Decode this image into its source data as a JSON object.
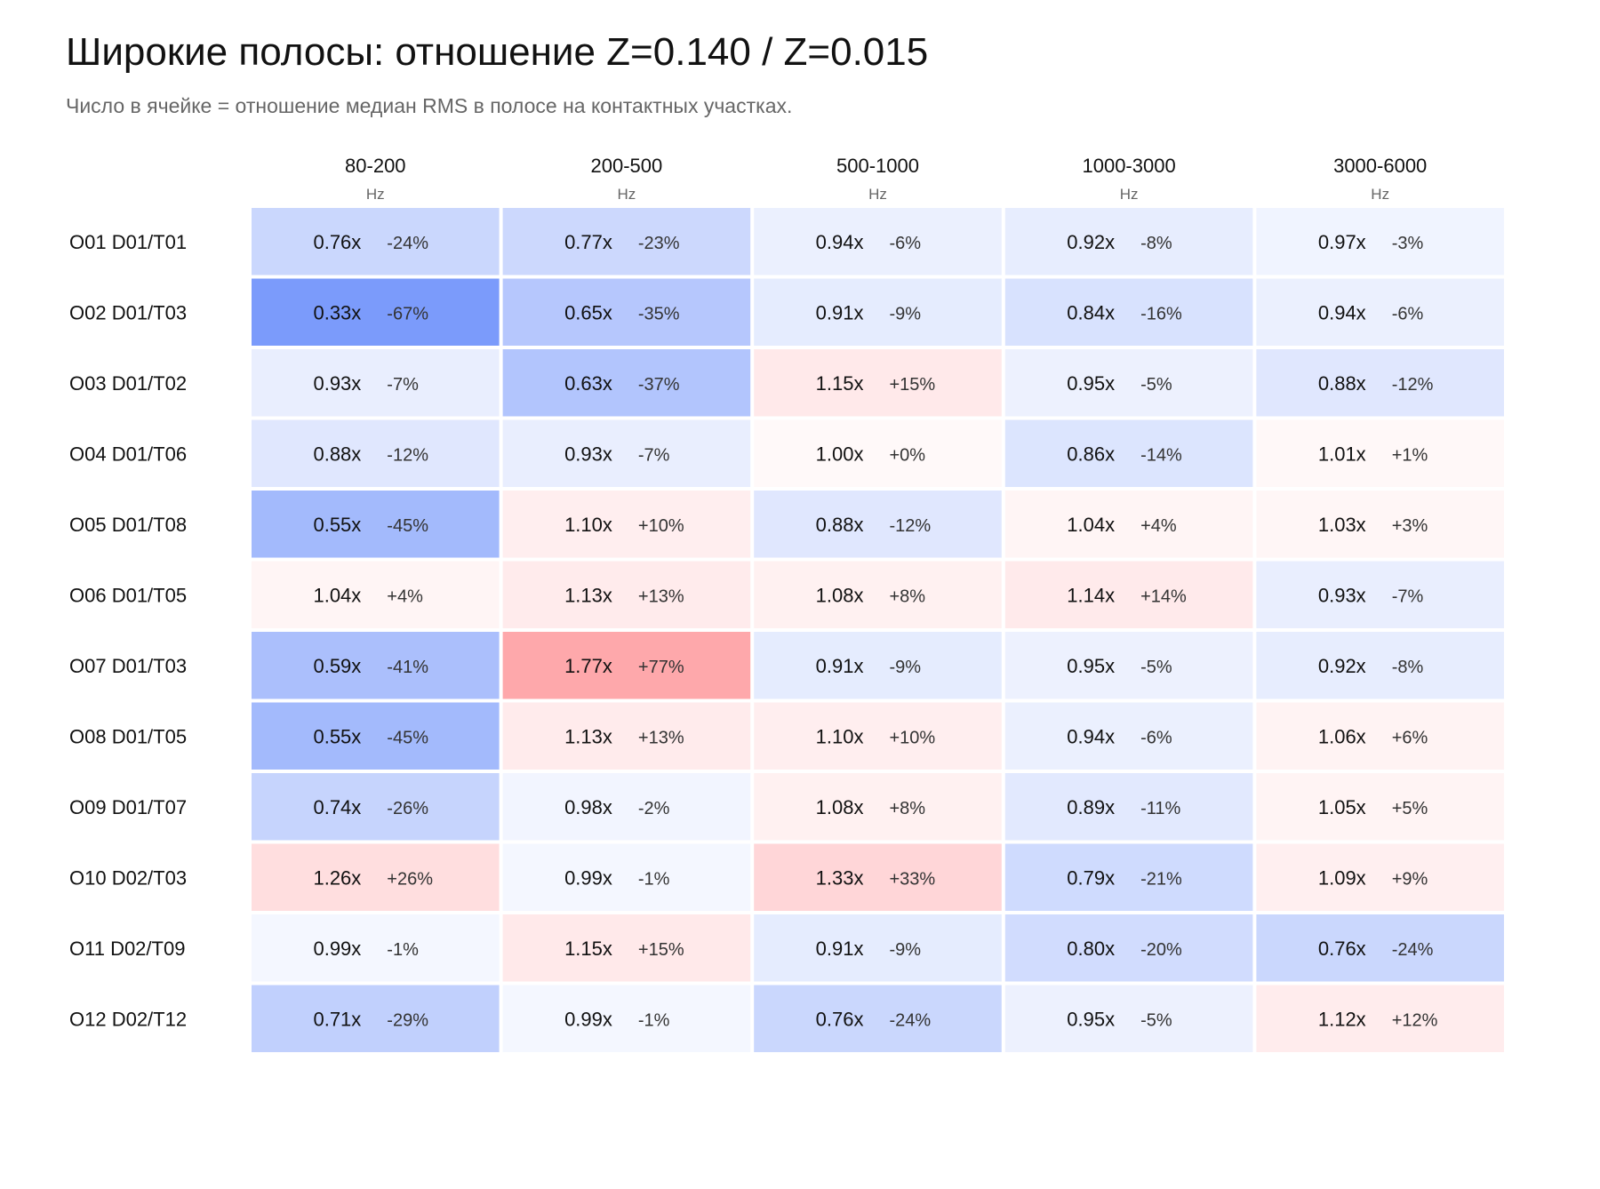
{
  "title": "Широкие полосы: отношение Z=0.140 / Z=0.015",
  "subtitle": "Число в ячейке = отношение медиан RMS в полосе на контактных участках.",
  "colors": {
    "decrease": "#7b9bfb",
    "increase": "#fea8ab",
    "neutral": "#ffffff"
  },
  "chart_data": {
    "type": "heatmap",
    "title": "Широкие полосы: отношение Z=0.140 / Z=0.015",
    "subtitle": "Число в ячейке = отношение медиан RMS в полосе на контактных участках.",
    "columns": [
      "80-200",
      "200-500",
      "500-1000",
      "1000-3000",
      "3000-6000"
    ],
    "column_unit": "Hz",
    "rows": [
      "O01 D01/T01",
      "O02 D01/T03",
      "O03 D01/T02",
      "O04 D01/T06",
      "O05 D01/T08",
      "O06 D01/T05",
      "O07 D01/T03",
      "O08 D01/T05",
      "O09 D01/T07",
      "O10 D02/T03",
      "O11 D02/T09",
      "O12 D02/T12"
    ],
    "values": [
      [
        0.76,
        0.77,
        0.94,
        0.92,
        0.97
      ],
      [
        0.33,
        0.65,
        0.91,
        0.84,
        0.94
      ],
      [
        0.93,
        0.63,
        1.15,
        0.95,
        0.88
      ],
      [
        0.88,
        0.93,
        1.0,
        0.86,
        1.01
      ],
      [
        0.55,
        1.1,
        0.88,
        1.04,
        1.03
      ],
      [
        1.04,
        1.13,
        1.08,
        1.14,
        0.93
      ],
      [
        0.59,
        1.77,
        0.91,
        0.95,
        0.92
      ],
      [
        0.55,
        1.13,
        1.1,
        0.94,
        1.06
      ],
      [
        0.74,
        0.98,
        1.08,
        0.89,
        1.05
      ],
      [
        1.26,
        0.99,
        1.33,
        0.79,
        1.09
      ],
      [
        0.99,
        1.15,
        0.91,
        0.8,
        0.76
      ],
      [
        0.71,
        0.99,
        0.76,
        0.95,
        1.12
      ]
    ],
    "ratio_labels": [
      [
        "0.76x",
        "0.77x",
        "0.94x",
        "0.92x",
        "0.97x"
      ],
      [
        "0.33x",
        "0.65x",
        "0.91x",
        "0.84x",
        "0.94x"
      ],
      [
        "0.93x",
        "0.63x",
        "1.15x",
        "0.95x",
        "0.88x"
      ],
      [
        "0.88x",
        "0.93x",
        "1.00x",
        "0.86x",
        "1.01x"
      ],
      [
        "0.55x",
        "1.10x",
        "0.88x",
        "1.04x",
        "1.03x"
      ],
      [
        "1.04x",
        "1.13x",
        "1.08x",
        "1.14x",
        "0.93x"
      ],
      [
        "0.59x",
        "1.77x",
        "0.91x",
        "0.95x",
        "0.92x"
      ],
      [
        "0.55x",
        "1.13x",
        "1.10x",
        "0.94x",
        "1.06x"
      ],
      [
        "0.74x",
        "0.98x",
        "1.08x",
        "0.89x",
        "1.05x"
      ],
      [
        "1.26x",
        "0.99x",
        "1.33x",
        "0.79x",
        "1.09x"
      ],
      [
        "0.99x",
        "1.15x",
        "0.91x",
        "0.80x",
        "0.76x"
      ],
      [
        "0.71x",
        "0.99x",
        "0.76x",
        "0.95x",
        "1.12x"
      ]
    ],
    "percent_labels": [
      [
        "-24%",
        "-23%",
        "-6%",
        "-8%",
        "-3%"
      ],
      [
        "-67%",
        "-35%",
        "-9%",
        "-16%",
        "-6%"
      ],
      [
        "-7%",
        "-37%",
        "+15%",
        "-5%",
        "-12%"
      ],
      [
        "-12%",
        "-7%",
        "+0%",
        "-14%",
        "+1%"
      ],
      [
        "-45%",
        "+10%",
        "-12%",
        "+4%",
        "+3%"
      ],
      [
        "+4%",
        "+13%",
        "+8%",
        "+14%",
        "-7%"
      ],
      [
        "-41%",
        "+77%",
        "-9%",
        "-5%",
        "-8%"
      ],
      [
        "-45%",
        "+13%",
        "+10%",
        "-6%",
        "+6%"
      ],
      [
        "-26%",
        "-2%",
        "+8%",
        "-11%",
        "+5%"
      ],
      [
        "+26%",
        "-1%",
        "+33%",
        "-21%",
        "+9%"
      ],
      [
        "-1%",
        "+15%",
        "-9%",
        "-20%",
        "-24%"
      ],
      [
        "-29%",
        "-1%",
        "-24%",
        "-5%",
        "+12%"
      ]
    ],
    "grid": false,
    "legend": "none"
  }
}
